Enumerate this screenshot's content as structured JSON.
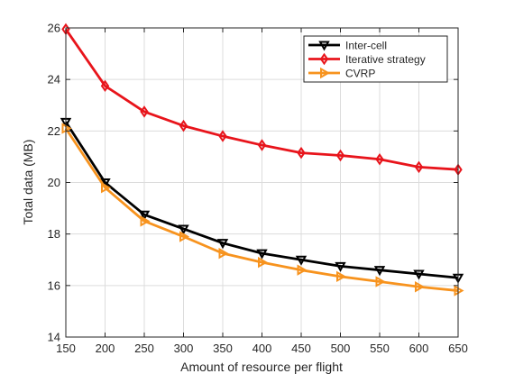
{
  "chart_data": {
    "type": "line",
    "xlabel": "Amount of resource per flight",
    "ylabel": "Total data (MB)",
    "xlim": [
      150,
      650
    ],
    "ylim": [
      14,
      26
    ],
    "x_ticks": [
      "150",
      "200",
      "250",
      "300",
      "350",
      "400",
      "450",
      "500",
      "550",
      "600",
      "650"
    ],
    "y_ticks": [
      "14",
      "16",
      "18",
      "20",
      "22",
      "24",
      "26"
    ],
    "grid": true,
    "legend_position": "top-right",
    "x": [
      150,
      200,
      250,
      300,
      350,
      400,
      450,
      500,
      550,
      600,
      650
    ],
    "series": [
      {
        "name": "Inter-cell",
        "color": "#000000",
        "marker": "triangle-down",
        "values": [
          22.35,
          20.0,
          18.75,
          18.2,
          17.65,
          17.25,
          17.0,
          16.75,
          16.6,
          16.45,
          16.3
        ]
      },
      {
        "name": "Iterative strategy",
        "color": "#e8141b",
        "marker": "diamond",
        "values": [
          25.95,
          23.75,
          22.75,
          22.2,
          21.8,
          21.45,
          21.15,
          21.05,
          20.9,
          20.6,
          20.5
        ]
      },
      {
        "name": "CVRP",
        "color": "#f7931e",
        "marker": "triangle-right",
        "values": [
          22.1,
          19.8,
          18.5,
          17.9,
          17.25,
          16.9,
          16.6,
          16.35,
          16.15,
          15.95,
          15.8
        ]
      }
    ]
  }
}
